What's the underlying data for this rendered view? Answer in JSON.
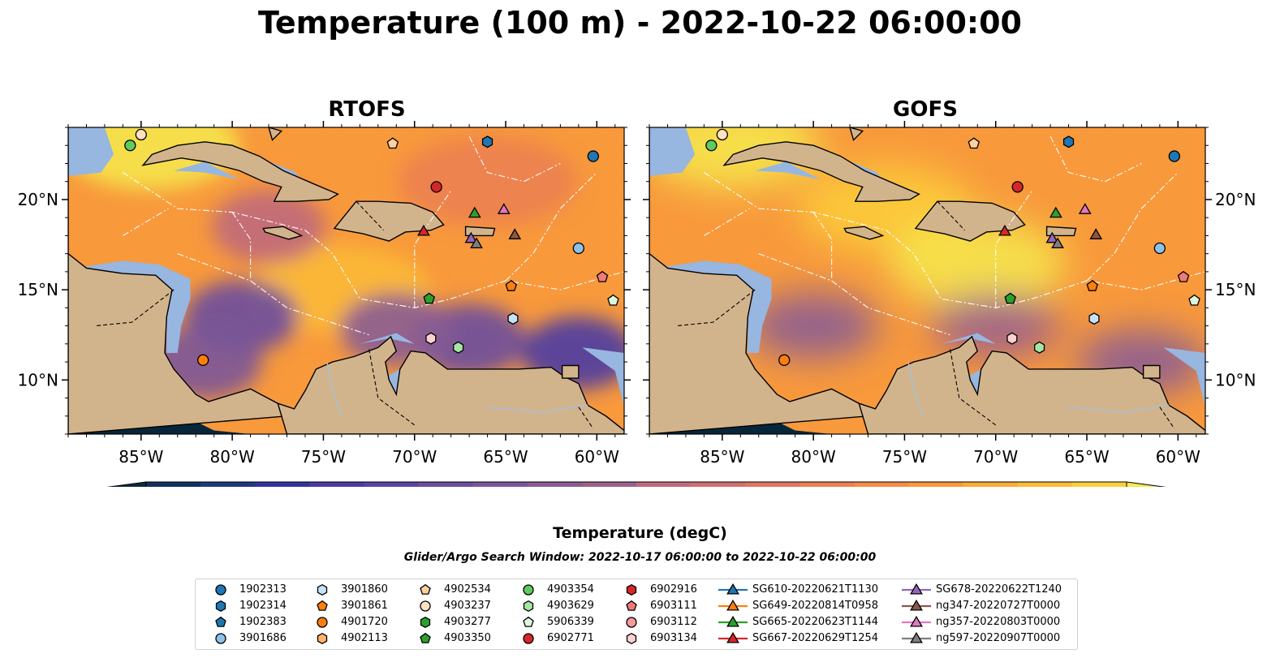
{
  "title": "Temperature (100 m) - 2022-10-22 06:00:00",
  "colorbar": {
    "label": "Temperature (degC)",
    "ticks": [
      "18",
      "19",
      "20",
      "21",
      "22",
      "23",
      "24",
      "25",
      "26",
      "27"
    ],
    "min": 18,
    "max": 27,
    "step": 0.5,
    "colors": [
      "#0b2a3c",
      "#13305f",
      "#1f3980",
      "#35339b",
      "#4a3aa3",
      "#5a43a3",
      "#6a4d9e",
      "#7a5599",
      "#8a5c94",
      "#9b618c",
      "#ad6584",
      "#bf6a7b",
      "#d06f6e",
      "#df7660",
      "#eb7f52",
      "#f48b46",
      "#f8993c",
      "#fbaa37",
      "#fcbb36",
      "#fbcf3a",
      "#f6ea4e"
    ],
    "extend": "both"
  },
  "search_window": "Glider/Argo Search Window: 2022-10-17 06:00:00 to 2022-10-22 06:00:00",
  "map_colors": {
    "land": "#d2b48c",
    "ocean_shelf": "#97b6e0",
    "pacific": "#08263a",
    "river": "#a7bfd8"
  },
  "chart_data": [
    {
      "type": "map",
      "title": "RTOFS",
      "xlim": [
        -89,
        -58.5
      ],
      "ylim": [
        7,
        24
      ],
      "xticks": [
        -85,
        -80,
        -75,
        -70,
        -65,
        -60
      ],
      "xtick_labels": [
        "85°W",
        "80°W",
        "75°W",
        "70°W",
        "65°W",
        "60°W"
      ],
      "yticks": [
        10,
        15,
        20
      ],
      "ytick_labels": [
        "10°N",
        "15°N",
        "20°N"
      ],
      "ytick_side": "left",
      "field_mean": "warm",
      "cool_regions": [
        {
          "lon": -79.5,
          "lat": 13.5,
          "temp": 20.5
        },
        {
          "lon": -81.5,
          "lat": 11.0,
          "temp": 21.0
        },
        {
          "lon": -67.0,
          "lat": 12.2,
          "temp": 20.5
        },
        {
          "lon": -61.0,
          "lat": 11.5,
          "temp": 20.0
        },
        {
          "lon": -71.0,
          "lat": 12.8,
          "temp": 21.5
        },
        {
          "lon": -78.0,
          "lat": 18.5,
          "temp": 23.0
        }
      ],
      "warm_regions": [
        {
          "lon": -74.0,
          "lat": 15.0,
          "temp": 26.0
        },
        {
          "lon": -84.5,
          "lat": 23.0,
          "temp": 27.0
        },
        {
          "lon": -66.0,
          "lat": 21.0,
          "temp": 24.5
        }
      ]
    },
    {
      "type": "map",
      "title": "GOFS",
      "xlim": [
        -89,
        -58.5
      ],
      "ylim": [
        7,
        24
      ],
      "xticks": [
        -85,
        -80,
        -75,
        -70,
        -65,
        -60
      ],
      "xtick_labels": [
        "85°W",
        "80°W",
        "75°W",
        "70°W",
        "65°W",
        "60°W"
      ],
      "yticks": [
        10,
        15,
        20
      ],
      "ytick_labels": [
        "10°N",
        "15°N",
        "20°N"
      ],
      "ytick_side": "right",
      "field_mean": "warm",
      "cool_regions": [
        {
          "lon": -80.0,
          "lat": 13.0,
          "temp": 21.5
        },
        {
          "lon": -70.0,
          "lat": 13.0,
          "temp": 22.0
        },
        {
          "lon": -62.0,
          "lat": 11.0,
          "temp": 21.5
        }
      ],
      "warm_regions": [
        {
          "lon": -76.0,
          "lat": 19.5,
          "temp": 26.5
        },
        {
          "lon": -71.0,
          "lat": 16.5,
          "temp": 27.0
        },
        {
          "lon": -84.5,
          "lat": 23.0,
          "temp": 27.0
        }
      ]
    }
  ],
  "markers": [
    {
      "id": "1902313",
      "shape": "circle",
      "color": "#1f77b4",
      "lon": -60.2,
      "lat": 22.4
    },
    {
      "id": "1902314",
      "shape": "hexagon",
      "color": "#1f77b4",
      "lon": -66.0,
      "lat": 23.2
    },
    {
      "id": "1902383",
      "shape": "pentagon",
      "color": "#1f77b4",
      "lon": null,
      "lat": null
    },
    {
      "id": "3901686",
      "shape": "circle",
      "color": "#8ec1ea",
      "lon": -61.0,
      "lat": 17.3
    },
    {
      "id": "3901860",
      "shape": "hexagon",
      "color": "#c6e2f7",
      "lon": -64.6,
      "lat": 13.4
    },
    {
      "id": "3901861",
      "shape": "pentagon",
      "color": "#ff7f0e",
      "lon": -64.7,
      "lat": 15.2
    },
    {
      "id": "4901720",
      "shape": "circle",
      "color": "#ff7f0e",
      "lon": -81.6,
      "lat": 11.1
    },
    {
      "id": "4902113",
      "shape": "hexagon",
      "color": "#ffb26b",
      "lon": null,
      "lat": null
    },
    {
      "id": "4902534",
      "shape": "pentagon",
      "color": "#ffd0a0",
      "lon": -71.2,
      "lat": 23.1
    },
    {
      "id": "4903237",
      "shape": "circle",
      "color": "#ffe2c2",
      "lon": -85.0,
      "lat": 23.6
    },
    {
      "id": "4903277",
      "shape": "hexagon",
      "color": "#2ca02c",
      "lon": null,
      "lat": null
    },
    {
      "id": "4903350",
      "shape": "pentagon",
      "color": "#2ca02c",
      "lon": -69.2,
      "lat": 14.5
    },
    {
      "id": "4903354",
      "shape": "circle",
      "color": "#5fcb5f",
      "lon": -85.6,
      "lat": 23.0
    },
    {
      "id": "4903629",
      "shape": "hexagon",
      "color": "#a5e6a5",
      "lon": -67.6,
      "lat": 11.8
    },
    {
      "id": "5906339",
      "shape": "pentagon",
      "color": "#dcf8dc",
      "lon": -59.1,
      "lat": 14.4
    },
    {
      "id": "6902771",
      "shape": "circle",
      "color": "#d62728",
      "lon": -68.8,
      "lat": 20.7
    },
    {
      "id": "6902916",
      "shape": "hexagon",
      "color": "#d62728",
      "lon": null,
      "lat": null
    },
    {
      "id": "6903111",
      "shape": "pentagon",
      "color": "#f07a7a",
      "lon": -59.7,
      "lat": 15.7
    },
    {
      "id": "6903112",
      "shape": "circle",
      "color": "#f39a9a",
      "lon": null,
      "lat": null
    },
    {
      "id": "6903134",
      "shape": "hexagon",
      "color": "#fbd0d0",
      "lon": -69.1,
      "lat": 12.3
    },
    {
      "id": "SG610-20220621T1130",
      "shape": "triangle",
      "color": "#1f77b4",
      "lon": null,
      "lat": null
    },
    {
      "id": "SG649-20220814T0958",
      "shape": "triangle",
      "color": "#ff7f0e",
      "lon": null,
      "lat": null
    },
    {
      "id": "SG665-20220623T1144",
      "shape": "triangle",
      "color": "#2ca02c",
      "lon": -66.7,
      "lat": 19.2
    },
    {
      "id": "SG667-20220629T1254",
      "shape": "triangle",
      "color": "#d62728",
      "lon": -69.5,
      "lat": 18.2
    },
    {
      "id": "SG678-20220622T1240",
      "shape": "triangle",
      "color": "#9467bd",
      "lon": -66.9,
      "lat": 17.8
    },
    {
      "id": "ng347-20220727T0000",
      "shape": "triangle",
      "color": "#8c564b",
      "lon": -64.5,
      "lat": 18.0
    },
    {
      "id": "ng357-20220803T0000",
      "shape": "triangle",
      "color": "#e377c2",
      "lon": -65.1,
      "lat": 19.4
    },
    {
      "id": "ng597-20220907T0000",
      "shape": "triangle",
      "color": "#7f7f7f",
      "lon": -66.6,
      "lat": 17.5
    }
  ]
}
